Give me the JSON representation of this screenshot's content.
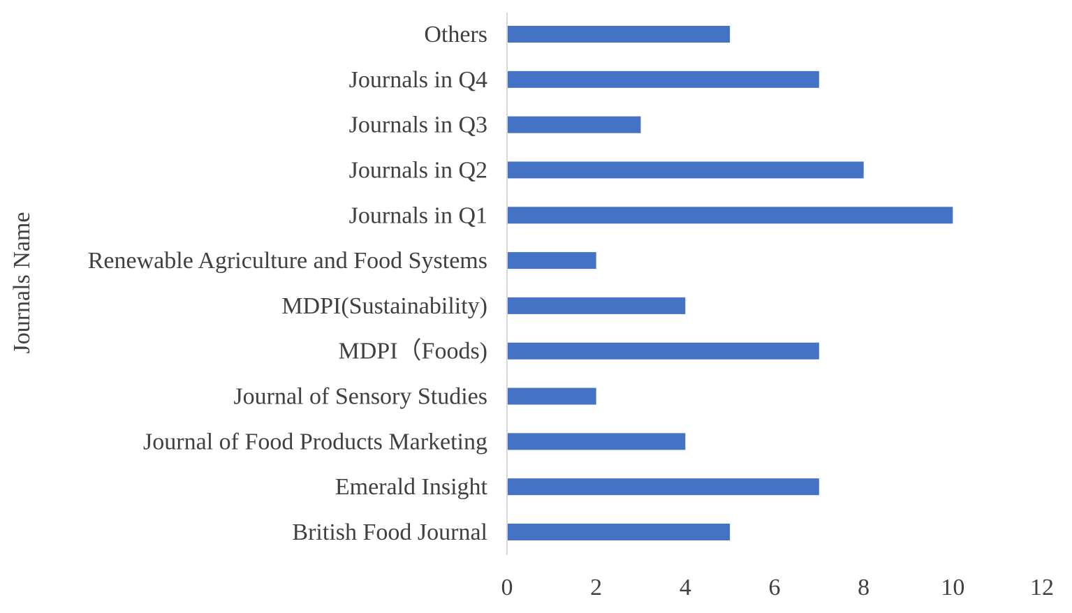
{
  "chart_data": {
    "type": "bar",
    "orientation": "horizontal",
    "title": "",
    "xlabel": "",
    "ylabel": "Journals Name",
    "categories": [
      "British Food Journal",
      "Emerald Insight",
      "Journal of Food Products Marketing",
      "Journal of Sensory Studies",
      "MDPI（Foods)",
      "MDPI(Sustainability)",
      "Renewable Agriculture and Food Systems",
      "Journals in Q1",
      "Journals in Q2",
      "Journals in Q3",
      "Journals in Q4",
      "Others"
    ],
    "values": [
      5,
      7,
      4,
      2,
      7,
      4,
      2,
      10,
      8,
      3,
      7,
      5
    ],
    "xlim": [
      0,
      12
    ],
    "xticks": [
      "0",
      "2",
      "4",
      "6",
      "8",
      "10",
      "12"
    ],
    "grid": false,
    "legend": "none",
    "bar_color": "#4472C4",
    "axis_color": "#D9D9D9"
  }
}
